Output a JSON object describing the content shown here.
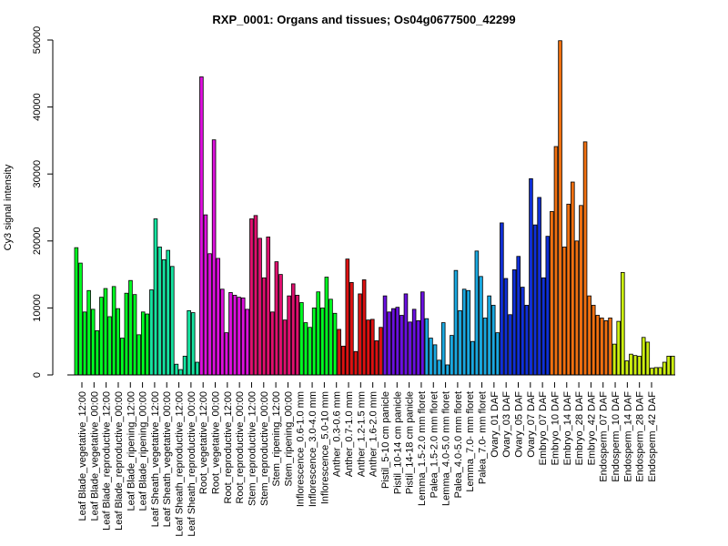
{
  "chart_data": {
    "type": "bar",
    "title": "RXP_0001: Organs and tissues; Os04g0677500_42299",
    "ylabel": "Cy3 signal intensity",
    "xlabel": "",
    "ylim": [
      0,
      50000
    ],
    "yticks": [
      0,
      10000,
      20000,
      30000,
      40000,
      50000
    ],
    "grid": false,
    "legend": "none",
    "xtick_labels": [
      "Leaf Blade_vegetative_12:00",
      "Leaf Blade_vegetative_00:00",
      "Leaf Blade_reproductive_12:00",
      "Leaf Blade_reproductive_00:00",
      "Leaf Blade_ripening_12:00",
      "Leaf Blade_ripening_00:00",
      "Leaf Sheath_vegetative_12:00",
      "Leaf Sheath_vegetative_00:00",
      "Leaf Sheath_reproductive_12:00",
      "Leaf Sheath_reproductive_00:00",
      "Root_vegetative_12:00",
      "Root_vegetative_00:00",
      "Root_reproductive_12:00",
      "Root_reproductive_00:00",
      "Stem_reproductive_12:00",
      "Stem_reproductive_00:00",
      "Stem_ripening_12:00",
      "Stem_ripening_00:00",
      "Inflorescence_0.6-1.0 mm",
      "Inflorescence_3.0-4.0 mm",
      "Inflorescence_5.0-10 mm",
      "Anther_0.3-0.6 mm",
      "Anther_0.7-1.0 mm",
      "Anther_1.2-1.5 mm",
      "Anther_1.6-2.0 mm",
      "Pistil_5-10 cm panicle",
      "Pistil_10-14 cm panicle",
      "Pistil_14-18 cm panicle",
      "Lemma_1.5-2.0 mm floret",
      "Palea_1.5-2.0 mm floret",
      "Lemma_4.0-5.0 mm floret",
      "Palea_4.0-5.0 mm floret",
      "Lemma_7.0- mm floret",
      "Palea_7.0- mm floret",
      "Ovary_01 DAF",
      "Ovary_03 DAF",
      "Ovary_05 DAF",
      "Ovary_07 DAF",
      "Embryo_07 DAF",
      "Embryo_10 DAF",
      "Embryo_14 DAF",
      "Embryo_28 DAF",
      "Embryo_42 DAF",
      "Endosperm_07 DAF",
      "Endosperm_10 DAF",
      "Endosperm_14 DAF",
      "Endosperm_28 DAF",
      "Endosperm_42 DAF"
    ],
    "values": [
      19000,
      16700,
      9400,
      12600,
      9800,
      6600,
      11600,
      12900,
      8700,
      13200,
      9900,
      5500,
      12200,
      14100,
      12000,
      6000,
      9400,
      9100,
      12700,
      23300,
      19100,
      17200,
      18600,
      16200,
      1600,
      800,
      2800,
      9600,
      9300,
      1900,
      44500,
      23900,
      18100,
      35100,
      17400,
      12800,
      6300,
      12300,
      11900,
      11600,
      11500,
      9800,
      23300,
      23800,
      20400,
      14500,
      20600,
      9400,
      16900,
      15000,
      8200,
      11800,
      13600,
      11900,
      10800,
      7800,
      7100,
      10000,
      12400,
      10000,
      14600,
      11300,
      9200,
      6800,
      4300,
      17300,
      13800,
      3500,
      12100,
      14200,
      8200,
      8300,
      5100,
      7100,
      11800,
      9400,
      9900,
      10100,
      8900,
      12100,
      7900,
      9800,
      8100,
      12400,
      8400,
      5500,
      4500,
      2200,
      7800,
      1500,
      5900,
      15600,
      9600,
      12800,
      12600,
      5000,
      18500,
      14700,
      8500,
      11800,
      10400,
      6300,
      22700,
      14400,
      9000,
      15700,
      17700,
      13100,
      10400,
      29300,
      22400,
      26500,
      14500,
      20700,
      24400,
      34100,
      49900,
      19100,
      25500,
      28800,
      20000,
      25300,
      34800,
      11800,
      10400,
      8900,
      8500,
      8100,
      8500,
      4600,
      8000,
      15300,
      2100,
      3100,
      2900,
      2800,
      5600,
      4900,
      1000,
      1100,
      1100,
      1900,
      2800,
      2800
    ],
    "colors": [
      "#00ff22",
      "#00ff22",
      "#00ff22",
      "#00ff22",
      "#00ff22",
      "#00ff22",
      "#00ff22",
      "#00ff22",
      "#00ff22",
      "#00ff22",
      "#00ff22",
      "#00ff22",
      "#00ff22",
      "#00ff22",
      "#00ff22",
      "#00ff22",
      "#00ff22",
      "#00ff22",
      "#16e3a0",
      "#16e3a0",
      "#16e3a0",
      "#16e3a0",
      "#16e3a0",
      "#16e3a0",
      "#16e3a0",
      "#16e3a0",
      "#16e3a0",
      "#16e3a0",
      "#16e3a0",
      "#16e3a0",
      "#dd10dd",
      "#dd10dd",
      "#dd10dd",
      "#dd10dd",
      "#dd10dd",
      "#dd10dd",
      "#dd10dd",
      "#dd10dd",
      "#dd10dd",
      "#dd10dd",
      "#dd10dd",
      "#dd10dd",
      "#e0106f",
      "#e0106f",
      "#e0106f",
      "#e0106f",
      "#e0106f",
      "#e0106f",
      "#e0106f",
      "#e0106f",
      "#e0106f",
      "#e0106f",
      "#e0106f",
      "#e0106f",
      "#00ff22",
      "#00ff22",
      "#00ff22",
      "#00ff22",
      "#00ff22",
      "#00ff22",
      "#00ff22",
      "#00ff22",
      "#00ff22",
      "#dd1111",
      "#dd1111",
      "#dd1111",
      "#dd1111",
      "#dd1111",
      "#dd1111",
      "#dd1111",
      "#dd1111",
      "#dd1111",
      "#dd1111",
      "#dd1111",
      "#6a10e0",
      "#6a10e0",
      "#6a10e0",
      "#6a10e0",
      "#6a10e0",
      "#6a10e0",
      "#6a10e0",
      "#6a10e0",
      "#6a10e0",
      "#6a10e0",
      "#1aa8e0",
      "#1aa8e0",
      "#1aa8e0",
      "#1aa8e0",
      "#1aa8e0",
      "#1aa8e0",
      "#1aa8e0",
      "#1aa8e0",
      "#1aa8e0",
      "#1aa8e0",
      "#1aa8e0",
      "#1aa8e0",
      "#1aa8e0",
      "#1aa8e0",
      "#1aa8e0",
      "#1aa8e0",
      "#1aa8e0",
      "#1aa8e0",
      "#1030d8",
      "#1030d8",
      "#1030d8",
      "#1030d8",
      "#1030d8",
      "#1030d8",
      "#1030d8",
      "#1030d8",
      "#1030d8",
      "#1030d8",
      "#1030d8",
      "#1030d8",
      "#f07010",
      "#f07010",
      "#f07010",
      "#f07010",
      "#f07010",
      "#f07010",
      "#f07010",
      "#f07010",
      "#f07010",
      "#f07010",
      "#f07010",
      "#f07010",
      "#f07010",
      "#f07010",
      "#f07010",
      "#ccee10",
      "#ccee10",
      "#ccee10",
      "#ccee10",
      "#ccee10",
      "#ccee10",
      "#ccee10",
      "#ccee10",
      "#ccee10",
      "#ccee10",
      "#ccee10",
      "#ccee10",
      "#ccee10",
      "#ccee10",
      "#ccee10"
    ]
  }
}
